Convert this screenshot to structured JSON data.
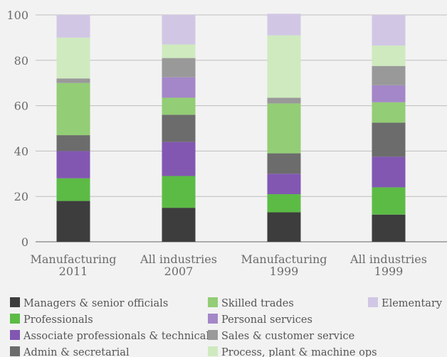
{
  "chart_data": {
    "type": "bar",
    "stacked": true,
    "categories": [
      [
        "Manufacturing",
        "2011"
      ],
      [
        "All industries",
        "2007"
      ],
      [
        "Manufacturing",
        "1999"
      ],
      [
        "All industries",
        "1999"
      ]
    ],
    "ylim": [
      0,
      100
    ],
    "yticks": [
      0,
      20,
      40,
      60,
      80,
      100
    ],
    "grid": "horizontal",
    "legend_position": "bottom",
    "series": [
      {
        "name": "Managers & senior officials",
        "color": "#3d3d3d",
        "values": [
          18,
          15,
          13,
          12
        ]
      },
      {
        "name": "Professionals",
        "color": "#5cbb45",
        "values": [
          10,
          14,
          8,
          12
        ]
      },
      {
        "name": "Associate professionals & technical",
        "color": "#8257b2",
        "values": [
          12,
          15,
          9,
          13.5
        ]
      },
      {
        "name": "Admin & secretarial",
        "color": "#6c6c6c",
        "values": [
          7,
          12,
          9,
          15
        ]
      },
      {
        "name": "Skilled trades",
        "color": "#93cd75",
        "values": [
          23,
          7.5,
          22,
          9
        ]
      },
      {
        "name": "Personal services",
        "color": "#a487c8",
        "values": [
          0,
          9,
          0,
          7.5
        ]
      },
      {
        "name": "Sales & customer service",
        "color": "#999999",
        "values": [
          2,
          8.5,
          2.5,
          8.5
        ]
      },
      {
        "name": "Process, plant & machine ops",
        "color": "#cfeabf",
        "values": [
          18,
          6,
          27.5,
          9
        ]
      },
      {
        "name": "Elementary",
        "color": "#d1c7e5",
        "values": [
          10,
          13,
          9.5,
          13.5
        ]
      }
    ]
  }
}
